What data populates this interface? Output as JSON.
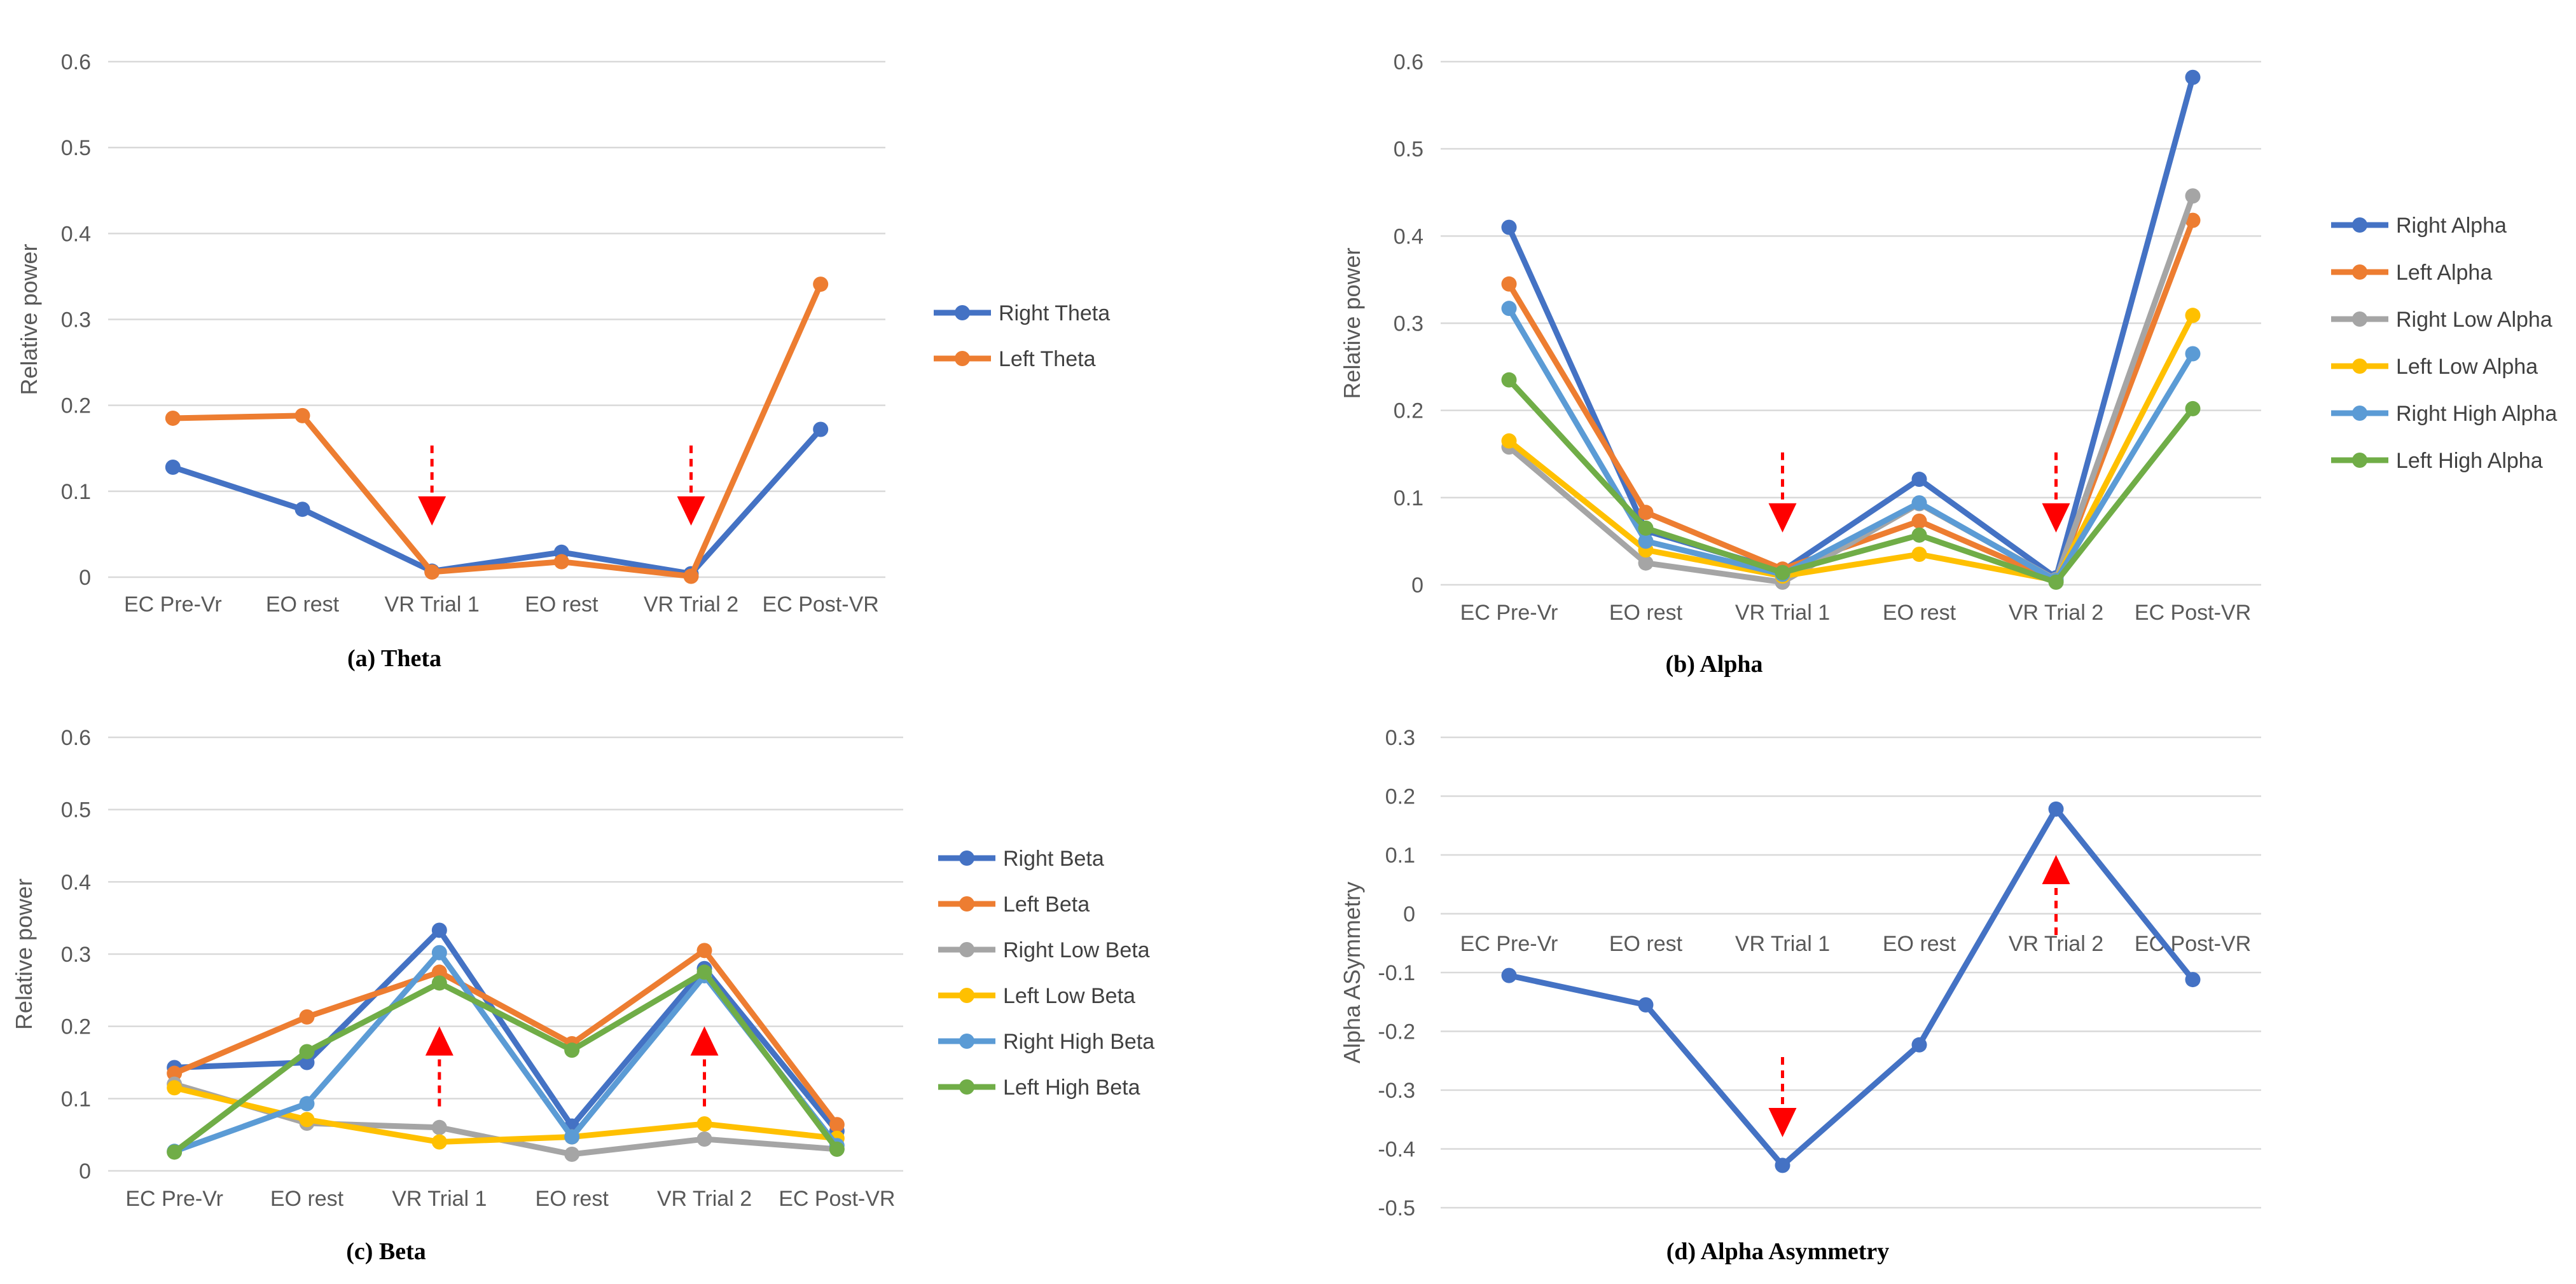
{
  "colors": {
    "blue": "#4472c4",
    "orange": "#ed7d31",
    "gray": "#a5a5a5",
    "yellow": "#ffc000",
    "lightblue": "#5b9bd5",
    "green": "#70ad47",
    "arrow": "#ff0000"
  },
  "chart_data": [
    {
      "id": "theta",
      "type": "line",
      "caption": "(a) Theta",
      "ylabel": "Relative power",
      "ylim": [
        0,
        0.6
      ],
      "yticks": [
        "0",
        "0.1",
        "0.2",
        "0.3",
        "0.4",
        "0.5",
        "0.6"
      ],
      "categories": [
        "EC Pre-Vr",
        "EO rest",
        "VR Trial 1",
        "EO rest",
        "VR Trial 2",
        "EC Post-VR"
      ],
      "grid": true,
      "legend_position": "right",
      "series": [
        {
          "name": "Right Theta",
          "color": "#4472c4",
          "values": [
            0.128,
            0.079,
            0.007,
            0.029,
            0.004,
            0.172
          ]
        },
        {
          "name": "Left Theta",
          "color": "#ed7d31",
          "values": [
            0.185,
            0.188,
            0.006,
            0.018,
            0.001,
            0.341
          ]
        }
      ],
      "arrows": [
        {
          "category_index": 2,
          "direction": "down",
          "value": 0.06
        },
        {
          "category_index": 4,
          "direction": "down",
          "value": 0.06
        }
      ]
    },
    {
      "id": "alpha",
      "type": "line",
      "caption": "(b) Alpha",
      "ylabel": "Relative power",
      "ylim": [
        0,
        0.6
      ],
      "yticks": [
        "0",
        "0.1",
        "0.2",
        "0.3",
        "0.4",
        "0.5",
        "0.6"
      ],
      "categories": [
        "EC Pre-Vr",
        "EO rest",
        "VR Trial 1",
        "EO rest",
        "VR Trial 2",
        "EC Post-VR"
      ],
      "grid": true,
      "legend_position": "right",
      "series": [
        {
          "name": "Right Alpha",
          "color": "#4472c4",
          "values": [
            0.41,
            0.062,
            0.016,
            0.121,
            0.008,
            0.582
          ]
        },
        {
          "name": "Left Alpha",
          "color": "#ed7d31",
          "values": [
            0.345,
            0.083,
            0.018,
            0.073,
            0.005,
            0.418
          ]
        },
        {
          "name": "Right Low Alpha",
          "color": "#a5a5a5",
          "values": [
            0.158,
            0.025,
            0.003,
            0.093,
            0.006,
            0.446
          ]
        },
        {
          "name": "Left Low Alpha",
          "color": "#ffc000",
          "values": [
            0.165,
            0.04,
            0.01,
            0.035,
            0.005,
            0.309
          ]
        },
        {
          "name": "Right High Alpha",
          "color": "#5b9bd5",
          "values": [
            0.317,
            0.05,
            0.012,
            0.094,
            0.005,
            0.265
          ]
        },
        {
          "name": "Left High Alpha",
          "color": "#70ad47",
          "values": [
            0.235,
            0.065,
            0.014,
            0.057,
            0.003,
            0.202
          ]
        }
      ],
      "arrows": [
        {
          "category_index": 2,
          "direction": "down",
          "value": 0.06
        },
        {
          "category_index": 4,
          "direction": "down",
          "value": 0.06
        }
      ]
    },
    {
      "id": "beta",
      "type": "line",
      "caption": "(c) Beta",
      "ylabel": "Relative power",
      "ylim": [
        0,
        0.6
      ],
      "yticks": [
        "0",
        "0.1",
        "0.2",
        "0.3",
        "0.4",
        "0.5",
        "0.6"
      ],
      "categories": [
        "EC Pre-Vr",
        "EO rest",
        "VR Trial 1",
        "EO rest",
        "VR Trial 2",
        "EC Post-VR"
      ],
      "grid": true,
      "legend_position": "right",
      "series": [
        {
          "name": "Right Beta",
          "color": "#4472c4",
          "values": [
            0.143,
            0.15,
            0.333,
            0.062,
            0.28,
            0.055
          ]
        },
        {
          "name": "Left Beta",
          "color": "#ed7d31",
          "values": [
            0.135,
            0.213,
            0.275,
            0.176,
            0.305,
            0.064
          ]
        },
        {
          "name": "Right Low Beta",
          "color": "#a5a5a5",
          "values": [
            0.12,
            0.066,
            0.06,
            0.023,
            0.044,
            0.03
          ]
        },
        {
          "name": "Left Low Beta",
          "color": "#ffc000",
          "values": [
            0.115,
            0.071,
            0.04,
            0.047,
            0.065,
            0.045
          ]
        },
        {
          "name": "Right High Beta",
          "color": "#5b9bd5",
          "values": [
            0.027,
            0.093,
            0.302,
            0.047,
            0.27,
            0.035
          ]
        },
        {
          "name": "Left High Beta",
          "color": "#70ad47",
          "values": [
            0.026,
            0.165,
            0.26,
            0.167,
            0.275,
            0.03
          ]
        }
      ],
      "arrows": [
        {
          "category_index": 2,
          "direction": "up",
          "value": 0.2
        },
        {
          "category_index": 4,
          "direction": "up",
          "value": 0.2
        }
      ]
    },
    {
      "id": "asymmetry",
      "type": "line",
      "caption": "(d) Alpha Asymmetry",
      "ylabel": "Alpha ASymmetry",
      "ylim": [
        -0.5,
        0.3
      ],
      "yticks": [
        "-0.5",
        "-0.4",
        "-0.3",
        "-0.2",
        "-0.1",
        "0",
        "0.1",
        "0.2",
        "0.3"
      ],
      "categories": [
        "EC Pre-Vr",
        "EO rest",
        "VR Trial 1",
        "EO rest",
        "VR Trial 2",
        "EC Post-VR"
      ],
      "category_label_value": -0.05,
      "grid": true,
      "legend_position": "none",
      "series": [
        {
          "name": "",
          "color": "#4472c4",
          "values": [
            -0.105,
            -0.155,
            -0.428,
            -0.223,
            0.178,
            -0.112
          ]
        }
      ],
      "arrows": [
        {
          "category_index": 2,
          "direction": "down",
          "value": -0.38
        },
        {
          "category_index": 4,
          "direction": "up",
          "value": 0.1
        }
      ]
    }
  ]
}
